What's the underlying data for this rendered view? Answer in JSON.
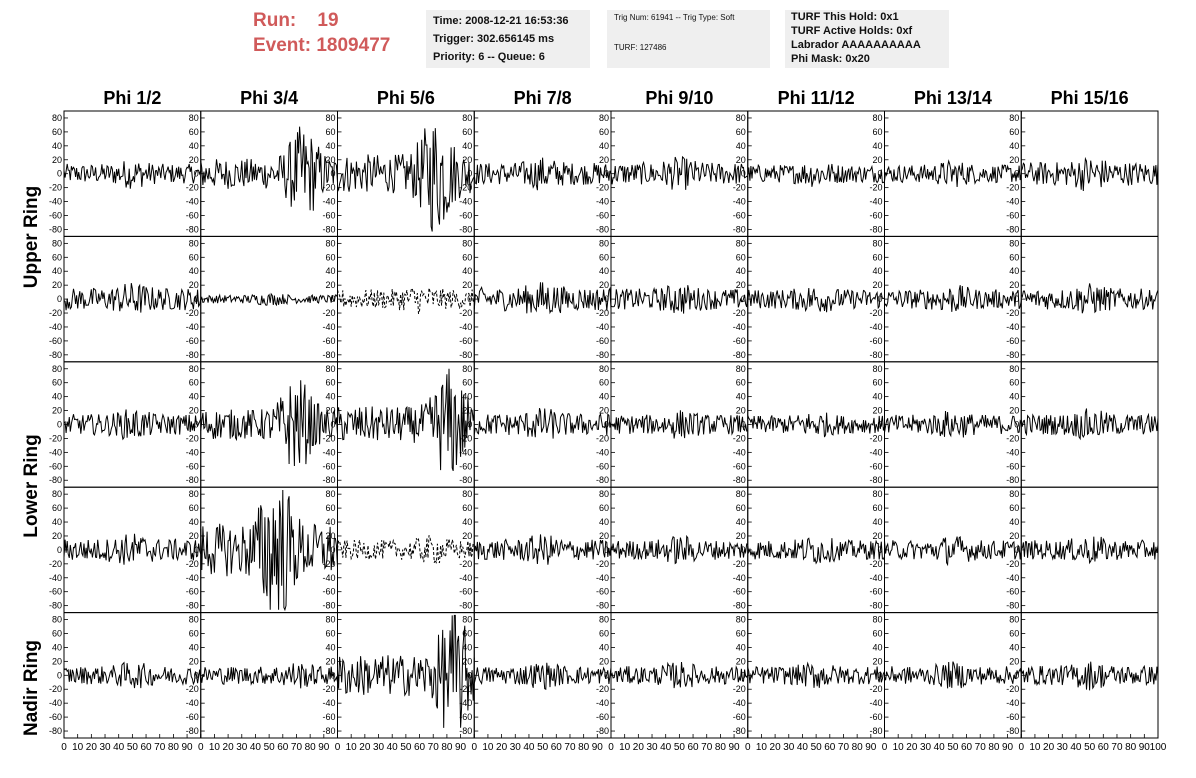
{
  "header": {
    "run_label": "Run:",
    "run_value": "19",
    "event_label": "Event:",
    "event_value": "1809477"
  },
  "info_box_1": {
    "time": "Time: 2008-12-21 16:53:36",
    "trigger": "Trigger: 302.656145 ms",
    "priority": "Priority: 6 -- Queue: 6"
  },
  "info_box_2": {
    "trig": "Trig Num: 61941 -- Trig Type: Soft",
    "turf": "TURF: 127486"
  },
  "info_box_3": {
    "hold": "TURF This Hold: 0x1",
    "active": "TURF Active Holds: 0xf",
    "labrador": "Labrador AAAAAAAAAA",
    "phimask": "Phi Mask: 0x20"
  },
  "ring_labels": {
    "upper": "Upper Ring",
    "lower": "Lower Ring",
    "nadir": "Nadir Ring"
  },
  "colors": {
    "header_red": "#d05a5a",
    "box_bg": "#efefef",
    "trace": "#000000"
  },
  "chart_data": {
    "type": "line",
    "columns": [
      "Phi 1/2",
      "Phi 3/4",
      "Phi 5/6",
      "Phi 7/8",
      "Phi 9/10",
      "Phi 11/12",
      "Phi 13/14",
      "Phi 15/16"
    ],
    "rows": 5,
    "ylim": [
      -90,
      90
    ],
    "y_ticks": [
      80,
      60,
      40,
      20,
      0,
      -20,
      -40,
      -60,
      -80
    ],
    "xlim": [
      0,
      100
    ],
    "x_tick_labels": [
      "0",
      "10",
      "20",
      "30",
      "40",
      "50",
      "60",
      "70",
      "80",
      "90",
      "100"
    ],
    "amplitude": [
      [
        14,
        22,
        28,
        16,
        16,
        13,
        13,
        17
      ],
      [
        16,
        6,
        14,
        17,
        15,
        14,
        14,
        15
      ],
      [
        15,
        22,
        26,
        16,
        14,
        13,
        14,
        15
      ],
      [
        16,
        38,
        14,
        15,
        14,
        14,
        14,
        14
      ],
      [
        13,
        13,
        30,
        13,
        13,
        13,
        13,
        14
      ]
    ],
    "burst_center": [
      [
        0.5,
        0.75,
        0.72,
        0.5,
        0.5,
        0.5,
        0.5,
        0.5
      ],
      [
        0.5,
        0.5,
        0.6,
        0.5,
        0.5,
        0.5,
        0.5,
        0.5
      ],
      [
        0.5,
        0.7,
        0.82,
        0.5,
        0.5,
        0.5,
        0.5,
        0.5
      ],
      [
        0.5,
        0.55,
        0.7,
        0.5,
        0.5,
        0.5,
        0.5,
        0.5
      ],
      [
        0.5,
        0.7,
        0.85,
        0.5,
        0.5,
        0.5,
        0.5,
        0.5
      ]
    ],
    "dashed": [
      [
        false,
        false,
        false,
        false,
        false,
        false,
        false,
        false
      ],
      [
        false,
        false,
        true,
        false,
        false,
        false,
        false,
        false
      ],
      [
        false,
        false,
        false,
        false,
        false,
        false,
        false,
        false
      ],
      [
        false,
        false,
        true,
        false,
        false,
        false,
        false,
        false
      ],
      [
        false,
        false,
        false,
        false,
        false,
        false,
        false,
        false
      ]
    ]
  }
}
